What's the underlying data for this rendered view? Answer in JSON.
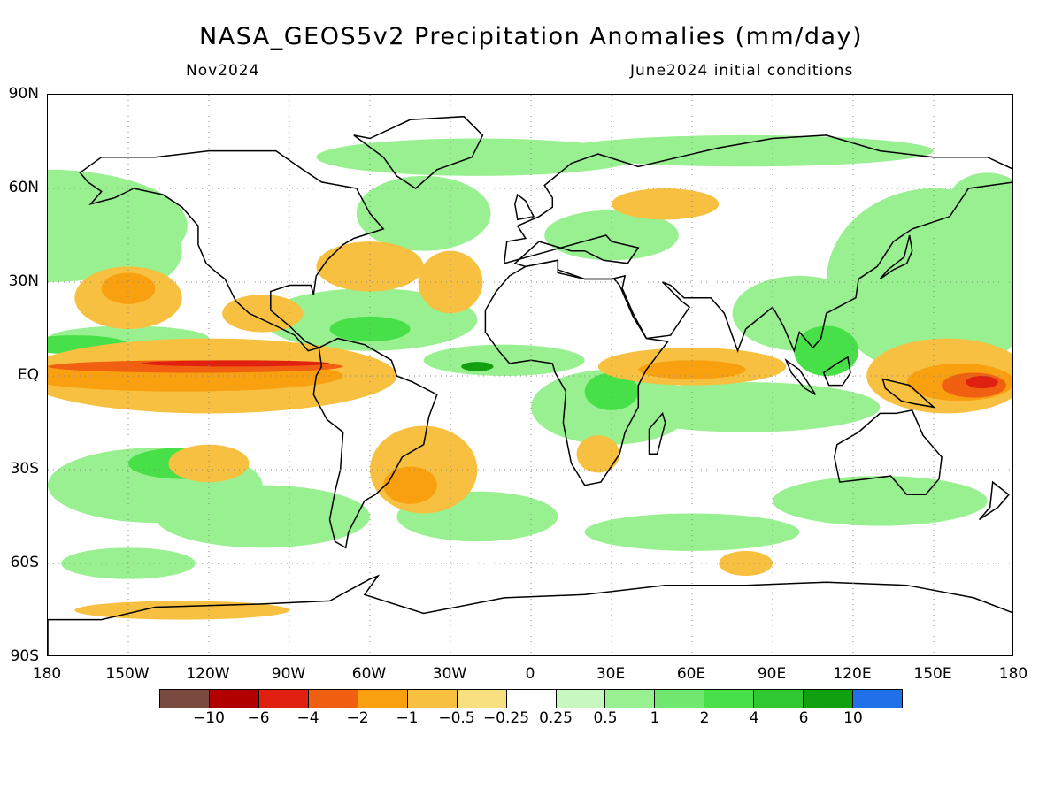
{
  "header": {
    "title": "NASA_GEOS5v2 Precipitation Anomalies (mm/day)",
    "left_subtitle": "Nov2024",
    "right_subtitle": "June2024 initial conditions"
  },
  "axes": {
    "lat_labels": [
      "90N",
      "60N",
      "30N",
      "EQ",
      "30S",
      "60S",
      "90S"
    ],
    "lon_labels": [
      "180",
      "150W",
      "120W",
      "90W",
      "60W",
      "30W",
      "0",
      "30E",
      "60E",
      "90E",
      "120E",
      "150E",
      "180"
    ],
    "lon_range": [
      -180,
      180
    ],
    "lat_range": [
      -90,
      90
    ],
    "grid": "dotted every 30 degrees"
  },
  "colorbar": {
    "colors": [
      "#7a4a40",
      "#b00000",
      "#e02010",
      "#f06010",
      "#f8a010",
      "#f8c040",
      "#f8e080",
      "#ffffff",
      "#c8f8c0",
      "#98f090",
      "#70e870",
      "#48e048",
      "#30c830",
      "#10a010",
      "#2070e8"
    ],
    "labels": [
      "-10",
      "-6",
      "-4",
      "-2",
      "-1",
      "-0.5",
      "-0.25",
      "0.25",
      "0.5",
      "1",
      "2",
      "4",
      "6",
      "10"
    ]
  }
}
